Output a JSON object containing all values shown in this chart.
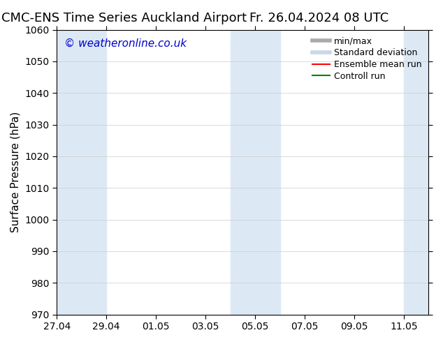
{
  "title_left": "CMC-ENS Time Series Auckland Airport",
  "title_right": "Fr. 26.04.2024 08 UTC",
  "ylabel": "Surface Pressure (hPa)",
  "ylim": [
    970,
    1060
  ],
  "yticks": [
    970,
    980,
    990,
    1000,
    1010,
    1020,
    1030,
    1040,
    1050,
    1060
  ],
  "x_start": "2024-04-27",
  "x_end": "2024-05-12",
  "xtick_labels": [
    "27.04",
    "29.04",
    "01.05",
    "03.05",
    "05.05",
    "07.05",
    "09.05",
    "11.05"
  ],
  "xtick_dates": [
    "2024-04-27",
    "2024-04-29",
    "2024-05-01",
    "2024-05-03",
    "2024-05-05",
    "2024-05-07",
    "2024-05-09",
    "2024-05-11"
  ],
  "shaded_bands": [
    {
      "x_start": "2024-04-27",
      "x_end": "2024-04-29"
    },
    {
      "x_start": "2024-05-04",
      "x_end": "2024-05-06"
    },
    {
      "x_start": "2024-05-11",
      "x_end": "2024-05-12"
    }
  ],
  "band_color": "#dce9f5",
  "copyright_text": "© weatheronline.co.uk",
  "copyright_color": "#0000cc",
  "legend_items": [
    {
      "label": "min/max",
      "color": "#aaaaaa",
      "style": "line",
      "lw": 4
    },
    {
      "label": "Standard deviation",
      "color": "#c8d8e8",
      "style": "line",
      "lw": 4
    },
    {
      "label": "Ensemble mean run",
      "color": "#ff0000",
      "style": "line",
      "lw": 1.5
    },
    {
      "label": "Controll run",
      "color": "#008000",
      "style": "line",
      "lw": 1.5
    }
  ],
  "bg_color": "#ffffff",
  "axes_bg_color": "#ffffff",
  "title_fontsize": 13,
  "label_fontsize": 11,
  "tick_fontsize": 10,
  "copyright_fontsize": 11
}
